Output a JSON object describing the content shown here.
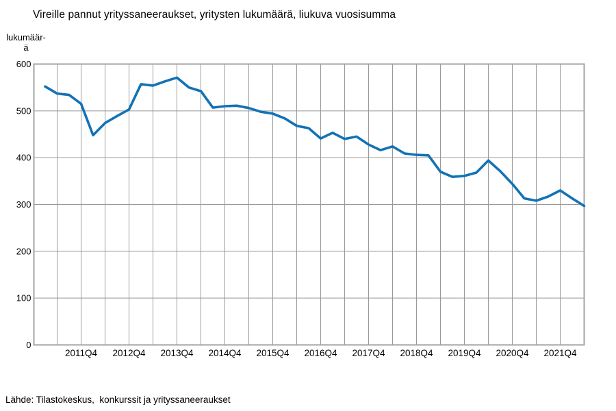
{
  "page": {
    "title": "Vireille pannut yrityssaneeraukset, yritysten lukumäärä, liukuva vuosisumma",
    "y_axis_unit_label": "lukumäär-\nä",
    "source_note": "Lähde: Tilastokeskus,  konkurssit ja yrityssaneeraukset"
  },
  "chart_data": {
    "type": "line",
    "title": "Vireille pannut yrityssaneeraukset, yritysten lukumäärä, liukuva vuosisumma",
    "xlabel": "",
    "ylabel": "lukumäärä",
    "ylim": [
      0,
      600
    ],
    "y_ticks": [
      0,
      100,
      200,
      300,
      400,
      500,
      600
    ],
    "grid": "on",
    "legend": "none",
    "series_name": "Vireille pannut yrityssaneeraukset, liukuva vuosisumma",
    "categories": [
      "2011Q1",
      "2011Q2",
      "2011Q3",
      "2011Q4",
      "2012Q1",
      "2012Q2",
      "2012Q3",
      "2012Q4",
      "2013Q1",
      "2013Q2",
      "2013Q3",
      "2013Q4",
      "2014Q1",
      "2014Q2",
      "2014Q3",
      "2014Q4",
      "2015Q1",
      "2015Q2",
      "2015Q3",
      "2015Q4",
      "2016Q1",
      "2016Q2",
      "2016Q3",
      "2016Q4",
      "2017Q1",
      "2017Q2",
      "2017Q3",
      "2017Q4",
      "2018Q1",
      "2018Q2",
      "2018Q3",
      "2018Q4",
      "2019Q1",
      "2019Q2",
      "2019Q3",
      "2019Q4",
      "2020Q1",
      "2020Q2",
      "2020Q3",
      "2020Q4",
      "2021Q1",
      "2021Q2",
      "2021Q3",
      "2021Q4",
      "2022Q1",
      "2022Q2"
    ],
    "values": [
      552,
      537,
      534,
      515,
      448,
      474,
      489,
      503,
      557,
      554,
      563,
      571,
      550,
      542,
      507,
      510,
      511,
      506,
      498,
      494,
      484,
      468,
      463,
      441,
      453,
      440,
      445,
      428,
      416,
      424,
      409,
      406,
      405,
      370,
      359,
      361,
      368,
      394,
      371,
      344,
      313,
      308,
      317,
      330,
      313,
      297
    ],
    "x_tick_labels": [
      "2011Q4",
      "2012Q4",
      "2013Q4",
      "2014Q4",
      "2015Q4",
      "2016Q4",
      "2017Q4",
      "2018Q4",
      "2019Q4",
      "2020Q4",
      "2021Q4"
    ],
    "colors": {
      "line": "#1272b5",
      "grid": "#999999",
      "frame": "#a3a3a3",
      "text": "#000000",
      "background": "#ffffff"
    }
  }
}
